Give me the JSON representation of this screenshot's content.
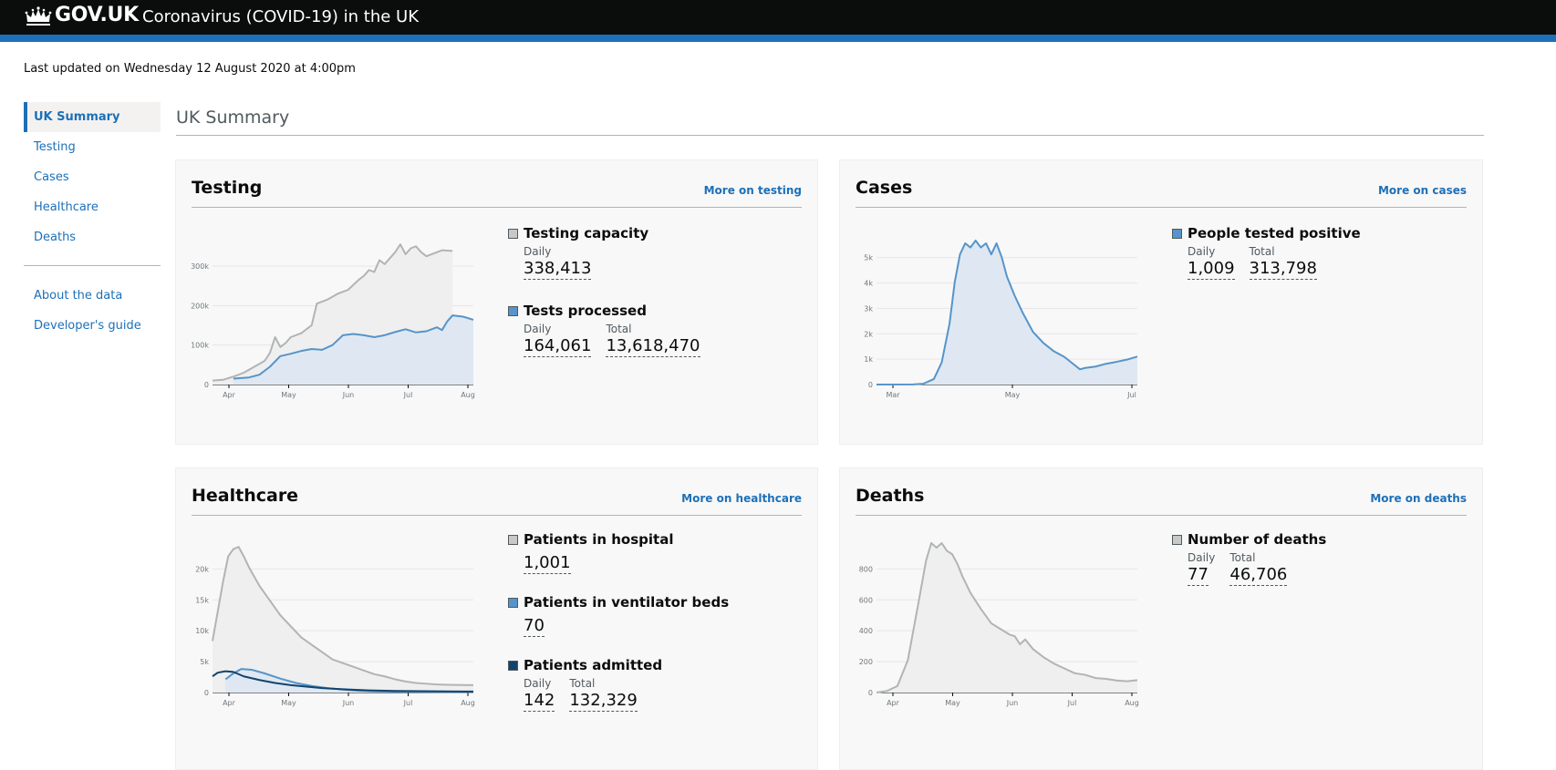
{
  "header": {
    "brand": "GOV.UK",
    "service": "Coronavirus (COVID-19) in the UK",
    "colors": {
      "bar": "#0b0c0c",
      "accent": "#1d70b8"
    }
  },
  "last_updated": "Last updated on Wednesday 12 August 2020 at 4:00pm",
  "sidenav": {
    "items": [
      {
        "label": "UK Summary",
        "active": true
      },
      {
        "label": "Testing"
      },
      {
        "label": "Cases"
      },
      {
        "label": "Healthcare"
      },
      {
        "label": "Deaths"
      }
    ],
    "secondary": [
      {
        "label": "About the data"
      },
      {
        "label": "Developer's guide"
      }
    ]
  },
  "page_title": "UK Summary",
  "cards": {
    "testing": {
      "title": "Testing",
      "more": "More on testing",
      "metrics": [
        {
          "title": "Testing capacity",
          "key": "grey",
          "values": [
            {
              "label": "Daily",
              "value": "338,413"
            }
          ]
        },
        {
          "title": "Tests processed",
          "key": "blue",
          "values": [
            {
              "label": "Daily",
              "value": "164,061"
            },
            {
              "label": "Total",
              "value": "13,618,470"
            }
          ]
        }
      ]
    },
    "cases": {
      "title": "Cases",
      "more": "More on cases",
      "metrics": [
        {
          "title": "People tested positive",
          "key": "blue",
          "values": [
            {
              "label": "Daily",
              "value": "1,009"
            },
            {
              "label": "Total",
              "value": "313,798"
            }
          ]
        }
      ]
    },
    "healthcare": {
      "title": "Healthcare",
      "more": "More on healthcare",
      "metrics": [
        {
          "title": "Patients in hospital",
          "key": "grey",
          "values": [
            {
              "label": "",
              "value": "1,001"
            }
          ]
        },
        {
          "title": "Patients in ventilator beds",
          "key": "blue",
          "values": [
            {
              "label": "",
              "value": "70"
            }
          ]
        },
        {
          "title": "Patients admitted",
          "key": "navy",
          "values": [
            {
              "label": "Daily",
              "value": "142"
            },
            {
              "label": "Total",
              "value": "132,329"
            }
          ]
        }
      ]
    },
    "deaths": {
      "title": "Deaths",
      "more": "More on deaths",
      "metrics": [
        {
          "title": "Number of deaths",
          "key": "grey",
          "values": [
            {
              "label": "Daily",
              "value": "77"
            },
            {
              "label": "Total",
              "value": "46,706"
            }
          ]
        }
      ]
    }
  },
  "chart_data": [
    {
      "id": "testing",
      "type": "area",
      "x_ticks": [
        "Apr",
        "May",
        "Jun",
        "Jul",
        "Aug"
      ],
      "y_ticks": [
        "0",
        "100k",
        "200k",
        "300k"
      ],
      "ylim": [
        0,
        400000
      ],
      "series": [
        {
          "color": "#b1b4b6",
          "fill": "#efefef",
          "values": [
            [
              0,
              10000
            ],
            [
              4,
              12000
            ],
            [
              8,
              20000
            ],
            [
              12,
              30000
            ],
            [
              16,
              45000
            ],
            [
              20,
              60000
            ],
            [
              22,
              80000
            ],
            [
              24,
              120000
            ],
            [
              26,
              95000
            ],
            [
              28,
              105000
            ],
            [
              30,
              120000
            ],
            [
              34,
              130000
            ],
            [
              38,
              150000
            ],
            [
              40,
              205000
            ],
            [
              44,
              215000
            ],
            [
              48,
              230000
            ],
            [
              52,
              240000
            ],
            [
              56,
              265000
            ],
            [
              58,
              275000
            ],
            [
              60,
              290000
            ],
            [
              62,
              285000
            ],
            [
              64,
              315000
            ],
            [
              66,
              305000
            ],
            [
              70,
              335000
            ],
            [
              72,
              355000
            ],
            [
              74,
              330000
            ],
            [
              76,
              345000
            ],
            [
              78,
              350000
            ],
            [
              80,
              335000
            ],
            [
              82,
              325000
            ],
            [
              86,
              335000
            ],
            [
              88,
              340000
            ],
            [
              92,
              338413
            ]
          ]
        },
        {
          "color": "#5694ca",
          "fill": "#dfe8f2",
          "values": [
            [
              8,
              15000
            ],
            [
              14,
              18000
            ],
            [
              18,
              25000
            ],
            [
              22,
              45000
            ],
            [
              26,
              72000
            ],
            [
              30,
              78000
            ],
            [
              34,
              85000
            ],
            [
              38,
              90000
            ],
            [
              42,
              88000
            ],
            [
              46,
              100000
            ],
            [
              50,
              125000
            ],
            [
              54,
              128000
            ],
            [
              58,
              125000
            ],
            [
              62,
              120000
            ],
            [
              66,
              125000
            ],
            [
              70,
              133000
            ],
            [
              74,
              140000
            ],
            [
              78,
              132000
            ],
            [
              82,
              135000
            ],
            [
              86,
              145000
            ],
            [
              88,
              138000
            ],
            [
              90,
              160000
            ],
            [
              92,
              175000
            ],
            [
              96,
              172000
            ],
            [
              100,
              164061
            ]
          ]
        }
      ]
    },
    {
      "id": "cases",
      "type": "area",
      "x_ticks": [
        "Mar",
        "May",
        "Jul"
      ],
      "y_ticks": [
        "0",
        "1k",
        "2k",
        "3k",
        "4k",
        "5k"
      ],
      "ylim": [
        0,
        5500
      ],
      "series": [
        {
          "color": "#5694ca",
          "fill": "#dfe8f2",
          "values": [
            [
              0,
              0
            ],
            [
              14,
              5
            ],
            [
              18,
              30
            ],
            [
              22,
              200
            ],
            [
              25,
              800
            ],
            [
              28,
              2200
            ],
            [
              30,
              3700
            ],
            [
              32,
              4700
            ],
            [
              34,
              5100
            ],
            [
              36,
              4950
            ],
            [
              38,
              5200
            ],
            [
              40,
              4950
            ],
            [
              42,
              5100
            ],
            [
              44,
              4700
            ],
            [
              46,
              5100
            ],
            [
              48,
              4600
            ],
            [
              50,
              3900
            ],
            [
              53,
              3200
            ],
            [
              56,
              2600
            ],
            [
              60,
              1900
            ],
            [
              64,
              1500
            ],
            [
              68,
              1200
            ],
            [
              72,
              1000
            ],
            [
              76,
              700
            ],
            [
              78,
              550
            ],
            [
              80,
              600
            ],
            [
              84,
              650
            ],
            [
              88,
              750
            ],
            [
              92,
              820
            ],
            [
              96,
              900
            ],
            [
              100,
              1009
            ]
          ]
        }
      ]
    },
    {
      "id": "healthcare",
      "type": "area",
      "x_ticks": [
        "Apr",
        "May",
        "Jun",
        "Jul",
        "Aug"
      ],
      "y_ticks": [
        "0",
        "5k",
        "10k",
        "15k",
        "20k"
      ],
      "ylim": [
        0,
        21000
      ],
      "series": [
        {
          "color": "#b1b4b6",
          "fill": "#efefef",
          "values": [
            [
              0,
              7000
            ],
            [
              2,
              11000
            ],
            [
              4,
              15000
            ],
            [
              6,
              18500
            ],
            [
              8,
              19500
            ],
            [
              10,
              19800
            ],
            [
              12,
              18500
            ],
            [
              14,
              17000
            ],
            [
              18,
              14500
            ],
            [
              22,
              12500
            ],
            [
              26,
              10500
            ],
            [
              30,
              9000
            ],
            [
              34,
              7500
            ],
            [
              38,
              6500
            ],
            [
              42,
              5500
            ],
            [
              46,
              4500
            ],
            [
              50,
              4000
            ],
            [
              54,
              3500
            ],
            [
              58,
              3000
            ],
            [
              62,
              2500
            ],
            [
              66,
              2200
            ],
            [
              70,
              1800
            ],
            [
              74,
              1500
            ],
            [
              78,
              1300
            ],
            [
              82,
              1200
            ],
            [
              86,
              1100
            ],
            [
              90,
              1050
            ],
            [
              100,
              1001
            ]
          ]
        },
        {
          "color": "#5694ca",
          "fill": "#dfe8f2",
          "values": [
            [
              5,
              1800
            ],
            [
              8,
              2600
            ],
            [
              11,
              3200
            ],
            [
              15,
              3100
            ],
            [
              20,
              2600
            ],
            [
              26,
              1900
            ],
            [
              32,
              1300
            ],
            [
              38,
              900
            ],
            [
              44,
              600
            ],
            [
              50,
              400
            ],
            [
              56,
              250
            ],
            [
              62,
              170
            ],
            [
              70,
              120
            ],
            [
              80,
              90
            ],
            [
              90,
              75
            ],
            [
              100,
              70
            ]
          ]
        },
        {
          "color": "#12436d",
          "fill": "none",
          "values": [
            [
              0,
              2200
            ],
            [
              2,
              2700
            ],
            [
              5,
              2900
            ],
            [
              8,
              2800
            ],
            [
              12,
              2200
            ],
            [
              18,
              1700
            ],
            [
              24,
              1300
            ],
            [
              30,
              1000
            ],
            [
              36,
              800
            ],
            [
              42,
              600
            ],
            [
              50,
              450
            ],
            [
              60,
              300
            ],
            [
              70,
              220
            ],
            [
              80,
              180
            ],
            [
              90,
              150
            ],
            [
              100,
              142
            ]
          ]
        }
      ]
    },
    {
      "id": "deaths",
      "type": "area",
      "x_ticks": [
        "Apr",
        "May",
        "Jun",
        "Jul",
        "Aug"
      ],
      "y_ticks": [
        "0",
        "200",
        "400",
        "600",
        "800"
      ],
      "ylim": [
        0,
        960
      ],
      "series": [
        {
          "color": "#b1b4b6",
          "fill": "#efefef",
          "values": [
            [
              0,
              0
            ],
            [
              4,
              10
            ],
            [
              8,
              40
            ],
            [
              12,
              200
            ],
            [
              16,
              550
            ],
            [
              19,
              820
            ],
            [
              21,
              930
            ],
            [
              23,
              900
            ],
            [
              25,
              940
            ],
            [
              27,
              880
            ],
            [
              29,
              860
            ],
            [
              31,
              800
            ],
            [
              33,
              720
            ],
            [
              36,
              620
            ],
            [
              40,
              520
            ],
            [
              44,
              430
            ],
            [
              48,
              390
            ],
            [
              51,
              360
            ],
            [
              53,
              350
            ],
            [
              55,
              300
            ],
            [
              57,
              330
            ],
            [
              60,
              270
            ],
            [
              64,
              220
            ],
            [
              68,
              180
            ],
            [
              72,
              150
            ],
            [
              76,
              120
            ],
            [
              80,
              110
            ],
            [
              84,
              90
            ],
            [
              88,
              85
            ],
            [
              92,
              75
            ],
            [
              96,
              70
            ],
            [
              100,
              77
            ]
          ]
        }
      ]
    }
  ]
}
